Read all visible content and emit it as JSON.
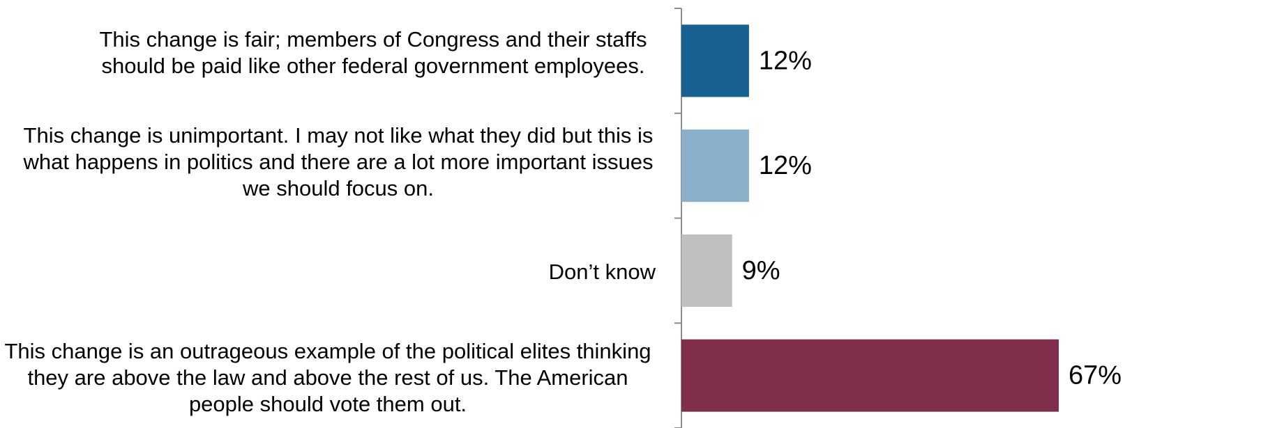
{
  "chart_data": {
    "type": "bar",
    "orientation": "horizontal",
    "categories": [
      "This change is fair; members of Congress and their staffs should be paid like other federal government employees.",
      "This change is unimportant. I may not like what they did but this is what happens in politics and there are a lot more important issues we should focus on.",
      "Don’t know",
      "This change is an outrageous example of the political elites thinking they are above the law and above the rest of us. The American people should vote them out."
    ],
    "values": [
      12,
      12,
      9,
      67
    ],
    "value_labels": [
      "12%",
      "12%",
      "9%",
      "67%"
    ],
    "colors": [
      "#176293",
      "#8aafca",
      "#bfbfbf",
      "#7f2f4c"
    ],
    "xlim": [
      0,
      67
    ],
    "grid": false,
    "legend": "none"
  }
}
